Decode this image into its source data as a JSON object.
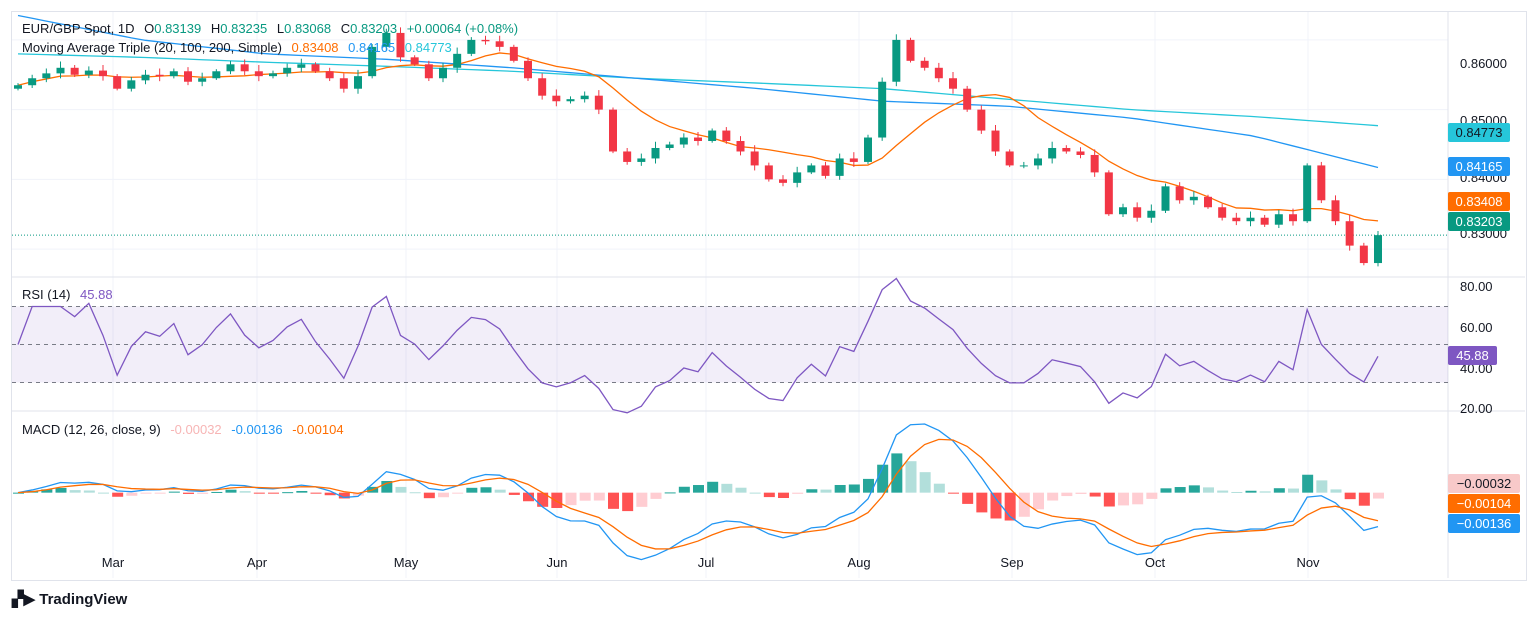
{
  "header": {
    "symbol": "EUR/GBP Spot, 1D",
    "o_label": "O",
    "open": "0.83139",
    "h_label": "H",
    "high": "0.83235",
    "l_label": "L",
    "low": "0.83068",
    "c_label": "C",
    "close": "0.83203",
    "change": "+0.00064 (+0.08%)"
  },
  "ma_legend": {
    "title": "Moving Average Triple (20, 100, 200, Simple)",
    "ma20": "0.83408",
    "ma100": "0.84165",
    "ma200": "0.84773"
  },
  "rsi_legend": {
    "title": "RSI (14)",
    "value": "45.88"
  },
  "macd_legend": {
    "title": "MACD (12, 26, close, 9)",
    "hist": "-0.00032",
    "macd": "-0.00136",
    "signal": "-0.00104"
  },
  "price_axis": [
    "0.86000",
    "0.85000",
    "0.84000",
    "0.83000"
  ],
  "rsi_axis": [
    "80.00",
    "60.00",
    "40.00",
    "20.00"
  ],
  "months": [
    "Mar",
    "Apr",
    "May",
    "Jun",
    "Jul",
    "Aug",
    "Sep",
    "Oct",
    "Nov"
  ],
  "tags": {
    "ma200": "0.84773",
    "ma100": "0.84165",
    "ma20": "0.83408",
    "last": "0.83203",
    "rsi": "45.88",
    "hist": "−0.00032",
    "signal": "−0.00104",
    "macd": "−0.00136"
  },
  "logo": "TradingView",
  "colors": {
    "up": "#089981",
    "down": "#f23645",
    "ma20": "#ff6d00",
    "ma100": "#2196f3",
    "ma200": "#26c6da",
    "rsi": "#7e57c2"
  },
  "chart_data": {
    "type": "candlestick",
    "title": "EUR/GBP Spot, 1D",
    "x_range": [
      "Feb 12",
      "Nov 14"
    ],
    "closes": [
      0.8535,
      0.8545,
      0.8552,
      0.856,
      0.855,
      0.8556,
      0.8548,
      0.853,
      0.8542,
      0.855,
      0.8548,
      0.8555,
      0.854,
      0.8545,
      0.8555,
      0.8565,
      0.8555,
      0.8548,
      0.8552,
      0.856,
      0.8565,
      0.8555,
      0.8545,
      0.853,
      0.8548,
      0.859,
      0.861,
      0.8575,
      0.8565,
      0.8545,
      0.856,
      0.858,
      0.86,
      0.8598,
      0.859,
      0.857,
      0.8545,
      0.852,
      0.8512,
      0.8515,
      0.852,
      0.85,
      0.844,
      0.8425,
      0.843,
      0.8445,
      0.845,
      0.846,
      0.8455,
      0.847,
      0.8455,
      0.844,
      0.842,
      0.84,
      0.8395,
      0.841,
      0.842,
      0.8405,
      0.843,
      0.8425,
      0.846,
      0.854,
      0.86,
      0.857,
      0.856,
      0.8545,
      0.853,
      0.85,
      0.847,
      0.844,
      0.842,
      0.842,
      0.843,
      0.8445,
      0.844,
      0.8435,
      0.841,
      0.835,
      0.836,
      0.8345,
      0.8355,
      0.839,
      0.837,
      0.8375,
      0.836,
      0.8345,
      0.834,
      0.8345,
      0.8335,
      0.835,
      0.834,
      0.842,
      0.837,
      0.834,
      0.8305,
      0.828,
      0.832
    ],
    "ma100": [
      0.8635,
      0.86,
      0.858,
      0.8572,
      0.856,
      0.8545,
      0.853,
      0.8512,
      0.8505,
      0.8488,
      0.8462,
      0.8417
    ],
    "ma200": [
      0.858,
      0.8575,
      0.8568,
      0.8562,
      0.8555,
      0.8545,
      0.8538,
      0.853,
      0.8515,
      0.85,
      0.849,
      0.8477
    ],
    "ylim": [
      0.826,
      0.864
    ],
    "rsi_ylim": [
      15,
      85
    ],
    "macd_ylim": [
      -0.0045,
      0.0042
    ]
  }
}
